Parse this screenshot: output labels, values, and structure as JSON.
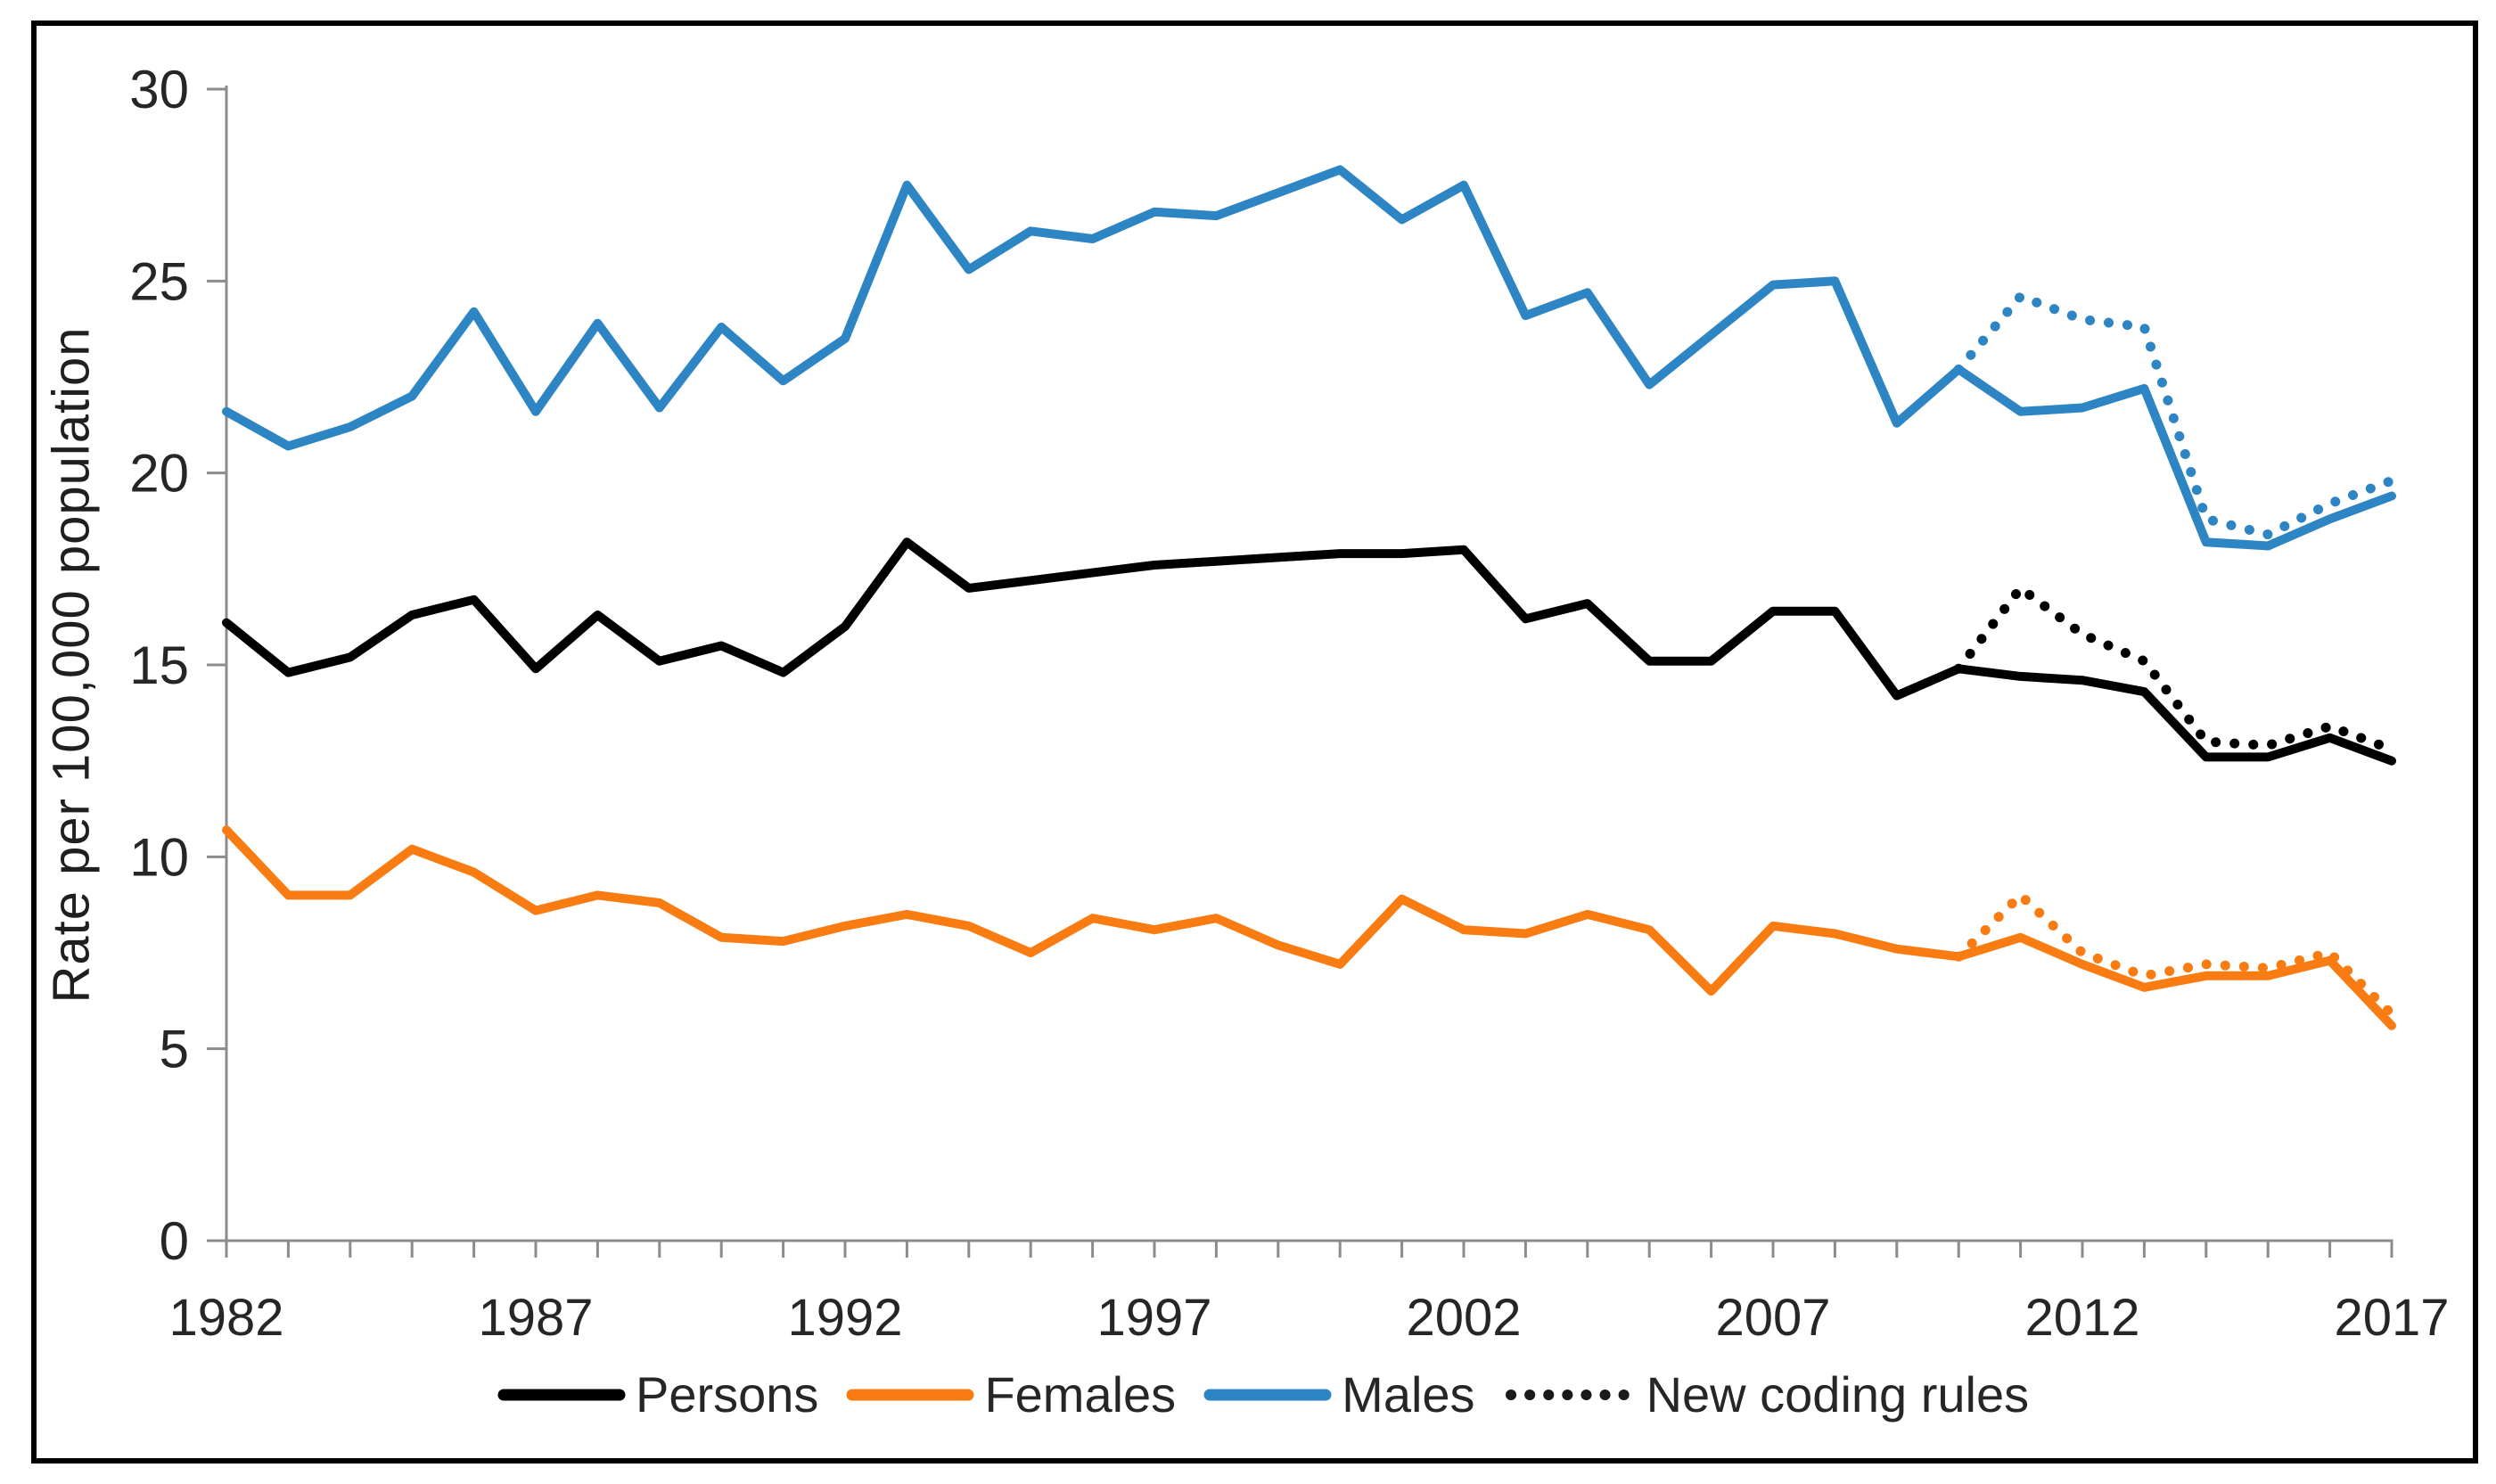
{
  "figure": {
    "y_axis_title": "Rate per 100,000 population"
  },
  "legend": {
    "items": [
      {
        "label": "Persons",
        "color": "#000000",
        "style": "solid"
      },
      {
        "label": "Females",
        "color": "#F97C12",
        "style": "solid"
      },
      {
        "label": "Males",
        "color": "#2E85C4",
        "style": "solid"
      },
      {
        "label": "New coding rules",
        "color": "#1a1a1a",
        "style": "dotted"
      }
    ]
  },
  "chart_data": {
    "type": "line",
    "title": "",
    "xlabel": "",
    "ylabel": "Rate per 100,000 population",
    "xlim": [
      1982,
      2017
    ],
    "ylim": [
      0,
      30
    ],
    "yticks": [
      0,
      5,
      10,
      15,
      20,
      25,
      30
    ],
    "xticks": [
      1982,
      1987,
      1992,
      1997,
      2002,
      2007,
      2012,
      2017
    ],
    "x_minor_tick_interval": 1,
    "grid": false,
    "legend_position": "bottom",
    "x": [
      1982,
      1983,
      1984,
      1985,
      1986,
      1987,
      1988,
      1989,
      1990,
      1991,
      1992,
      1993,
      1994,
      1995,
      1996,
      1997,
      1998,
      1999,
      2000,
      2001,
      2002,
      2003,
      2004,
      2005,
      2006,
      2007,
      2008,
      2009,
      2010,
      2011,
      2012,
      2013,
      2014,
      2015,
      2016,
      2017
    ],
    "series": [
      {
        "name": "Persons",
        "color": "#000000",
        "style": "solid",
        "x_start": 1982,
        "values": [
          16.1,
          14.8,
          15.2,
          16.3,
          16.7,
          14.9,
          16.3,
          15.1,
          15.5,
          14.8,
          16.0,
          18.2,
          17.0,
          17.2,
          17.4,
          17.6,
          17.7,
          17.8,
          17.9,
          17.9,
          18.0,
          16.2,
          16.6,
          15.1,
          15.1,
          16.4,
          16.4,
          14.2,
          14.9,
          14.7,
          14.6,
          14.3,
          12.6,
          12.6,
          13.1,
          12.5
        ]
      },
      {
        "name": "Females",
        "color": "#F97C12",
        "style": "solid",
        "x_start": 1982,
        "values": [
          10.7,
          9.0,
          9.0,
          10.2,
          9.6,
          8.6,
          9.0,
          8.8,
          7.9,
          7.8,
          8.2,
          8.5,
          8.2,
          7.5,
          8.4,
          8.1,
          8.4,
          7.7,
          7.2,
          8.9,
          8.1,
          8.0,
          8.5,
          8.1,
          6.5,
          8.2,
          8.0,
          7.6,
          7.4,
          7.9,
          7.2,
          6.6,
          6.9,
          6.9,
          7.3,
          5.6
        ]
      },
      {
        "name": "Males",
        "color": "#2E85C4",
        "style": "solid",
        "x_start": 1982,
        "values": [
          21.6,
          20.7,
          21.2,
          22.0,
          24.2,
          21.6,
          23.9,
          21.7,
          23.8,
          22.4,
          23.5,
          27.5,
          25.3,
          26.3,
          26.1,
          26.8,
          26.7,
          27.3,
          27.9,
          26.6,
          27.5,
          24.1,
          24.7,
          22.3,
          23.6,
          24.9,
          25.0,
          21.3,
          22.7,
          21.6,
          21.7,
          22.2,
          18.2,
          18.1,
          18.8,
          19.4
        ]
      },
      {
        "name": "Persons (new coding rules)",
        "color": "#000000",
        "style": "dotted",
        "x_start": 2010,
        "values": [
          14.9,
          17.0,
          15.8,
          15.1,
          13.0,
          12.9,
          13.4,
          12.8
        ]
      },
      {
        "name": "Females (new coding rules)",
        "color": "#F97C12",
        "style": "dotted",
        "x_start": 2010,
        "values": [
          7.4,
          9.0,
          7.5,
          6.9,
          7.2,
          7.1,
          7.5,
          5.9
        ]
      },
      {
        "name": "Males (new coding rules)",
        "color": "#2E85C4",
        "style": "dotted",
        "x_start": 2010,
        "values": [
          22.7,
          24.6,
          24.0,
          23.8,
          18.8,
          18.4,
          19.2,
          19.8
        ]
      }
    ]
  }
}
